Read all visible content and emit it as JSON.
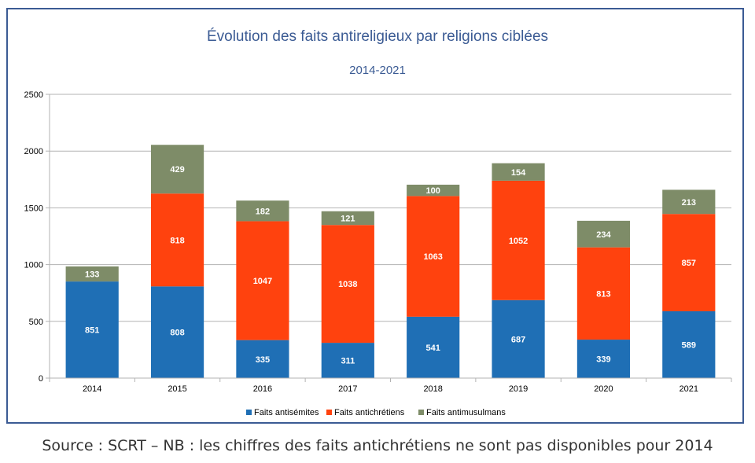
{
  "chart_data": {
    "type": "bar",
    "stacked": true,
    "title": "Évolution des faits antireligieux par religions ciblées",
    "subtitle": "2014-2021",
    "categories": [
      "2014",
      "2015",
      "2016",
      "2017",
      "2018",
      "2019",
      "2020",
      "2021"
    ],
    "series": [
      {
        "name": "Faits antisémites",
        "color": "#1f6fb5",
        "values": [
          851,
          808,
          335,
          311,
          541,
          687,
          339,
          589
        ]
      },
      {
        "name": "Faits antichrétiens",
        "color": "#ff420e",
        "values": [
          null,
          818,
          1047,
          1038,
          1063,
          1052,
          813,
          857
        ]
      },
      {
        "name": "Faits antimusulmans",
        "color": "#7e8c68",
        "values": [
          133,
          429,
          182,
          121,
          100,
          154,
          234,
          213
        ]
      }
    ],
    "ylim": [
      0,
      2500
    ],
    "yticks": [
      0,
      500,
      1000,
      1500,
      2000,
      2500
    ],
    "grid": true,
    "legend_position": "bottom"
  },
  "source_note": "Source : SCRT – NB : les chiffres des faits antichrétiens ne sont pas disponibles pour 2014"
}
